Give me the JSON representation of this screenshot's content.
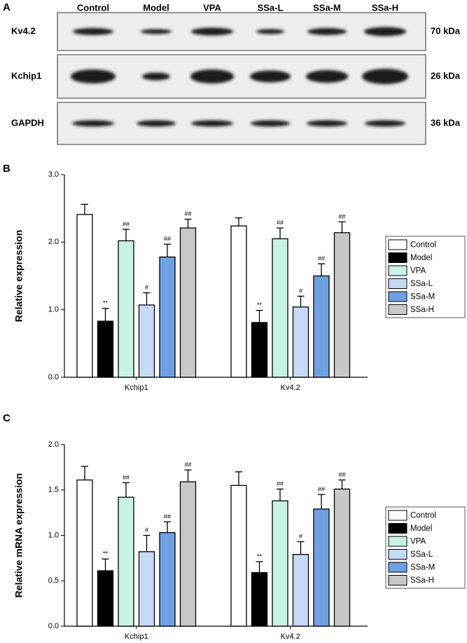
{
  "blot": {
    "panel_label": "A",
    "lanes": [
      "Control",
      "Model",
      "VPA",
      "SSa-L",
      "SSa-M",
      "SSa-H"
    ],
    "rows": [
      {
        "label": "Kv4.2",
        "size": "70 kDa"
      },
      {
        "label": "Kchip1",
        "size": "26 kDa"
      },
      {
        "label": "GAPDH",
        "size": "36 kDa"
      }
    ]
  },
  "chart_data": [
    {
      "type": "bar",
      "panel_label": "B",
      "y_label": "Relative expression",
      "categories": [
        "Kchip1",
        "Kv4.2"
      ],
      "ylim": [
        0,
        3
      ],
      "yticks": [
        {
          "value": 0,
          "label": "0.0"
        },
        {
          "value": 1,
          "label": "1.0"
        },
        {
          "value": 2,
          "label": "2.0"
        },
        {
          "value": 3,
          "label": "3.0"
        }
      ],
      "series": [
        {
          "name": "Control",
          "color": "#ffffff",
          "values": [
            2.41,
            2.24
          ],
          "errors": [
            0.15,
            0.12
          ],
          "annotations": [
            null,
            null
          ]
        },
        {
          "name": "Model",
          "color": "#000000",
          "values": [
            0.83,
            0.81
          ],
          "errors": [
            0.19,
            0.18
          ],
          "annotations": [
            "**",
            "**"
          ]
        },
        {
          "name": "VPA",
          "color": "#c8f2e2",
          "values": [
            2.02,
            2.05
          ],
          "errors": [
            0.17,
            0.16
          ],
          "annotations": [
            "##",
            "##"
          ]
        },
        {
          "name": "SSa-L",
          "color": "#c6daf6",
          "values": [
            1.07,
            1.04
          ],
          "errors": [
            0.18,
            0.16
          ],
          "annotations": [
            "#",
            "#"
          ]
        },
        {
          "name": "SSa-M",
          "color": "#6fa1e2",
          "values": [
            1.78,
            1.5
          ],
          "errors": [
            0.19,
            0.18
          ],
          "annotations": [
            "##",
            "##"
          ]
        },
        {
          "name": "SSa-H",
          "color": "#c8c8c8",
          "values": [
            2.21,
            2.14
          ],
          "errors": [
            0.13,
            0.16
          ],
          "annotations": [
            "##",
            "##"
          ]
        }
      ]
    },
    {
      "type": "bar",
      "panel_label": "C",
      "y_label": "Relative mRNA expression",
      "categories": [
        "Kchip1",
        "Kv4.2"
      ],
      "ylim": [
        0,
        2
      ],
      "yticks": [
        {
          "value": 0,
          "label": "0.0"
        },
        {
          "value": 0.5,
          "label": "0.5"
        },
        {
          "value": 1,
          "label": "1.0"
        },
        {
          "value": 1.5,
          "label": "1.5"
        },
        {
          "value": 2,
          "label": "2.0"
        }
      ],
      "series": [
        {
          "name": "Control",
          "color": "#ffffff",
          "values": [
            1.61,
            1.55
          ],
          "errors": [
            0.15,
            0.15
          ],
          "annotations": [
            null,
            null
          ]
        },
        {
          "name": "Model",
          "color": "#000000",
          "values": [
            0.61,
            0.59
          ],
          "errors": [
            0.13,
            0.12
          ],
          "annotations": [
            "**",
            "**"
          ]
        },
        {
          "name": "VPA",
          "color": "#c8f2e2",
          "values": [
            1.42,
            1.38
          ],
          "errors": [
            0.16,
            0.13
          ],
          "annotations": [
            "##",
            "##"
          ]
        },
        {
          "name": "SSa-L",
          "color": "#c6daf6",
          "values": [
            0.82,
            0.79
          ],
          "errors": [
            0.18,
            0.14
          ],
          "annotations": [
            "#",
            "#"
          ]
        },
        {
          "name": "SSa-M",
          "color": "#6fa1e2",
          "values": [
            1.03,
            1.29
          ],
          "errors": [
            0.12,
            0.16
          ],
          "annotations": [
            "##",
            "##"
          ]
        },
        {
          "name": "SSa-H",
          "color": "#c8c8c8",
          "values": [
            1.59,
            1.51
          ],
          "errors": [
            0.13,
            0.1
          ],
          "annotations": [
            "##",
            "##"
          ]
        }
      ]
    }
  ]
}
